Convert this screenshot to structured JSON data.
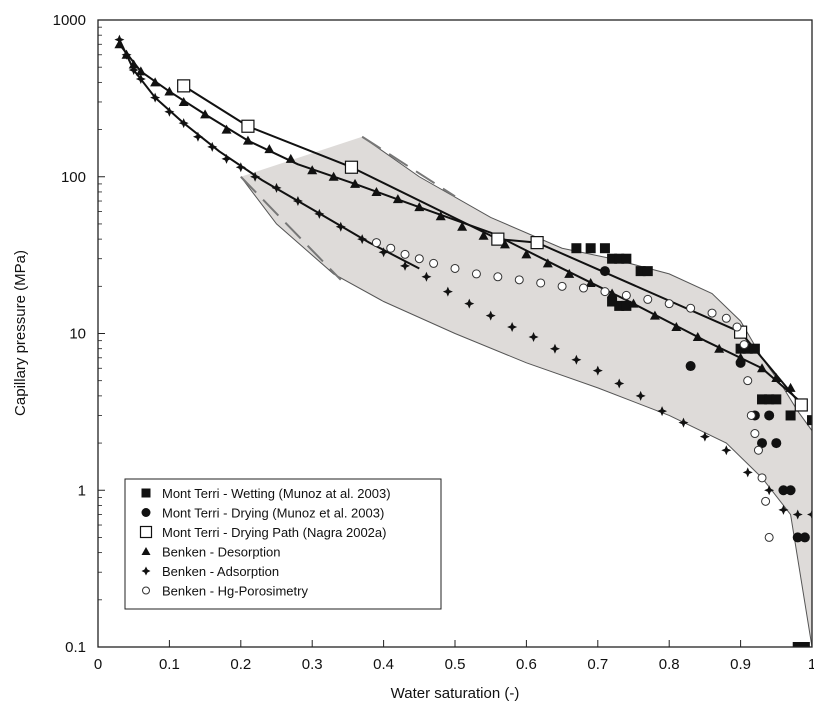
{
  "chart_data": {
    "type": "scatter",
    "xlabel": "Water saturation (-)",
    "ylabel": "Capillary pressure (MPa)",
    "xlim": [
      0,
      1
    ],
    "ylim": [
      0.1,
      1000
    ],
    "y_scale": "log",
    "x_ticks": [
      0,
      0.1,
      0.2,
      0.3,
      0.4,
      0.5,
      0.6,
      0.7,
      0.8,
      0.9,
      1
    ],
    "x_tick_labels": [
      "0",
      "0.1",
      "0.2",
      "0.3",
      "0.4",
      "0.5",
      "0.6",
      "0.7",
      "0.8",
      "0.9",
      "1"
    ],
    "y_ticks": [
      0.1,
      1,
      10,
      100,
      1000
    ],
    "y_tick_labels": [
      "0.1",
      "1",
      "10",
      "100",
      "1000"
    ],
    "grid": false,
    "legend_position": "bottom-left",
    "series": [
      {
        "name": "Mont Terri - Wetting (Munoz at al. 2003)",
        "marker": "filled-square",
        "x": [
          0.67,
          0.69,
          0.71,
          0.72,
          0.73,
          0.74,
          0.76,
          0.77,
          0.72,
          0.73,
          0.74,
          0.9,
          0.91,
          0.92,
          0.93,
          0.94,
          0.95,
          0.97,
          0.98,
          0.99,
          1.0
        ],
        "y": [
          35,
          35,
          35,
          30,
          30,
          30,
          25,
          25,
          16,
          15,
          15,
          8,
          8,
          8,
          3.8,
          3.8,
          3.8,
          3.0,
          0.1,
          0.1,
          2.8
        ]
      },
      {
        "name": "Mont Terri - Drying (Munoz et al. 2003)",
        "marker": "filled-circle",
        "x": [
          0.71,
          0.83,
          0.9,
          0.92,
          0.93,
          0.94,
          0.95,
          0.96,
          0.97,
          0.98,
          0.99
        ],
        "y": [
          25,
          6.2,
          6.5,
          3.0,
          2.0,
          3.0,
          2.0,
          1.0,
          1.0,
          0.5,
          0.5
        ]
      },
      {
        "name": "Mont Terri - Drying Path (Nagra 2002a)",
        "marker": "open-square",
        "x": [
          0.12,
          0.21,
          0.355,
          0.56,
          0.615,
          0.9,
          0.985
        ],
        "y": [
          380,
          210,
          115,
          40,
          38,
          10.2,
          3.5
        ]
      },
      {
        "name": "Benken - Desorption",
        "marker": "filled-triangle",
        "x": [
          0.03,
          0.04,
          0.05,
          0.06,
          0.08,
          0.1,
          0.12,
          0.15,
          0.18,
          0.21,
          0.24,
          0.27,
          0.3,
          0.33,
          0.36,
          0.39,
          0.42,
          0.45,
          0.48,
          0.51,
          0.54,
          0.57,
          0.6,
          0.63,
          0.66,
          0.69,
          0.72,
          0.75,
          0.78,
          0.81,
          0.84,
          0.87,
          0.9,
          0.93,
          0.95,
          0.97
        ],
        "y": [
          700,
          600,
          520,
          470,
          400,
          350,
          300,
          250,
          200,
          170,
          150,
          130,
          110,
          100,
          90,
          80,
          72,
          64,
          56,
          48,
          42,
          37,
          32,
          28,
          24,
          21,
          18,
          15.5,
          13,
          11,
          9.5,
          8,
          7,
          6,
          5.2,
          4.5
        ]
      },
      {
        "name": "Benken - Adsorption",
        "marker": "filled-cross",
        "x": [
          0.03,
          0.04,
          0.05,
          0.06,
          0.08,
          0.1,
          0.12,
          0.14,
          0.16,
          0.18,
          0.2,
          0.22,
          0.25,
          0.28,
          0.31,
          0.34,
          0.37,
          0.4,
          0.43,
          0.46,
          0.49,
          0.52,
          0.55,
          0.58,
          0.61,
          0.64,
          0.67,
          0.7,
          0.73,
          0.76,
          0.79,
          0.82,
          0.85,
          0.88,
          0.91,
          0.94,
          0.96,
          0.98,
          1.0
        ],
        "y": [
          750,
          600,
          480,
          420,
          320,
          260,
          220,
          180,
          155,
          130,
          115,
          100,
          85,
          70,
          58,
          48,
          40,
          33,
          27,
          23,
          18.5,
          15.5,
          13,
          11,
          9.5,
          8,
          6.8,
          5.8,
          4.8,
          4.0,
          3.2,
          2.7,
          2.2,
          1.8,
          1.3,
          1.0,
          0.75,
          0.7,
          0.7
        ]
      },
      {
        "name": "Benken - Hg-Porosimetry",
        "marker": "open-circle",
        "x": [
          0.39,
          0.41,
          0.43,
          0.45,
          0.47,
          0.5,
          0.53,
          0.56,
          0.59,
          0.62,
          0.65,
          0.68,
          0.71,
          0.74,
          0.77,
          0.8,
          0.83,
          0.86,
          0.88,
          0.895,
          0.905,
          0.91,
          0.915,
          0.92,
          0.925,
          0.93,
          0.935,
          0.94
        ],
        "y": [
          38,
          35,
          32,
          30,
          28,
          26,
          24,
          23,
          22,
          21,
          20,
          19.5,
          18.5,
          17.5,
          16.5,
          15.5,
          14.5,
          13.5,
          12.5,
          11,
          8.5,
          5,
          3,
          2.3,
          1.8,
          1.2,
          0.85,
          0.5
        ]
      }
    ],
    "curves": [
      {
        "name": "Mont Terri - Drying Path (Nagra 2002a) line",
        "style": "solid",
        "x": [
          0.12,
          0.21,
          0.355,
          0.56,
          0.615,
          0.9,
          0.985
        ],
        "y": [
          380,
          210,
          115,
          40,
          38,
          10.2,
          3.5
        ]
      },
      {
        "name": "Benken - Desorption curve",
        "style": "solid",
        "x": [
          0.03,
          0.06,
          0.1,
          0.15,
          0.21,
          0.28,
          0.36,
          0.45,
          0.55,
          0.65,
          0.75,
          0.85,
          0.93,
          0.98
        ],
        "y": [
          700,
          470,
          350,
          250,
          170,
          120,
          90,
          64,
          44,
          26,
          15.5,
          9,
          6,
          3.8
        ]
      },
      {
        "name": "Benken - Adsorption curve",
        "style": "solid",
        "x": [
          0.03,
          0.05,
          0.08,
          0.12,
          0.17,
          0.23,
          0.3,
          0.38,
          0.45
        ],
        "y": [
          750,
          480,
          320,
          220,
          145,
          95,
          62,
          38,
          26
        ]
      }
    ],
    "envelope": {
      "style": "shaded band",
      "fill": "#d8d5d2",
      "upper": {
        "x": [
          0.37,
          0.45,
          0.55,
          0.65,
          0.72,
          0.8,
          0.86,
          0.9,
          0.93,
          0.96,
          0.98,
          1.0
        ],
        "y": [
          180,
          100,
          55,
          35,
          30,
          24,
          18,
          12,
          7,
          4.5,
          3.2,
          2.4
        ]
      },
      "lower": {
        "x": [
          0.2,
          0.25,
          0.33,
          0.4,
          0.5,
          0.6,
          0.7,
          0.8,
          0.88,
          0.93,
          0.97,
          1.0
        ],
        "y": [
          100,
          50,
          24,
          16,
          10,
          6.5,
          4.5,
          3.0,
          2.0,
          1.2,
          0.7,
          0.1
        ]
      }
    },
    "colors": {
      "markers": "#111111",
      "axes": "#222222",
      "envelope_fill": "#d8d5d2",
      "envelope_edge": "#555555",
      "background": "#ffffff"
    }
  }
}
